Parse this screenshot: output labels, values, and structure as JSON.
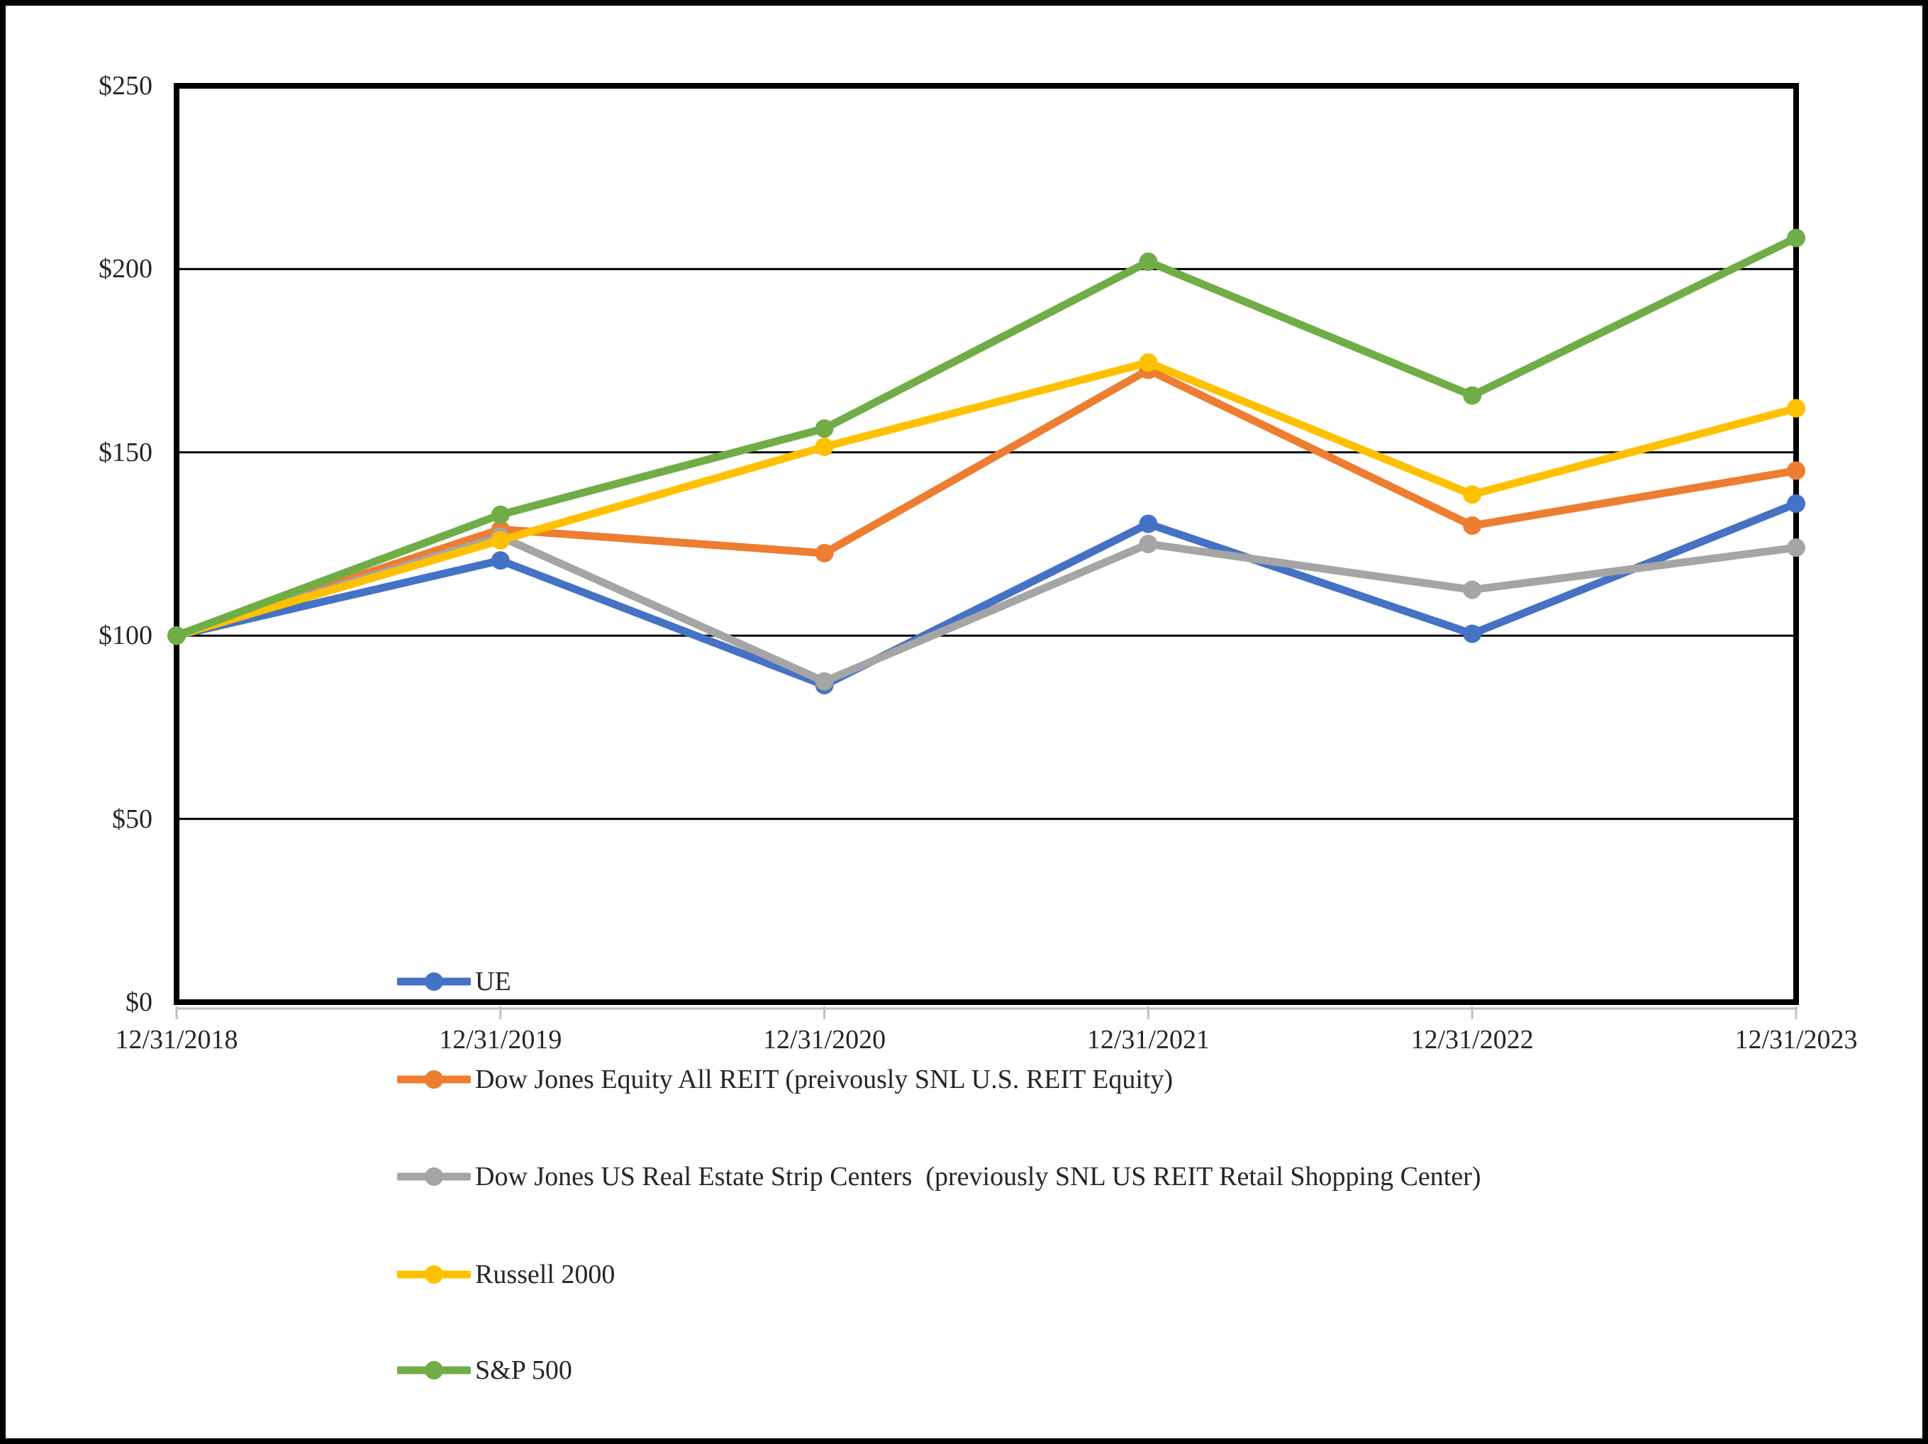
{
  "chart_data": {
    "type": "line",
    "title": "",
    "xlabel": "",
    "ylabel": "",
    "categories": [
      "12/31/2018",
      "12/31/2019",
      "12/31/2020",
      "12/31/2021",
      "12/31/2022",
      "12/31/2023"
    ],
    "series": [
      {
        "name": "UE",
        "color": "#4472C4",
        "values": [
          100,
          120.5,
          86.5,
          130.5,
          100.5,
          136
        ]
      },
      {
        "name": "Dow Jones Equity All REIT (preivously SNL U.S. REIT Equity)",
        "color": "#ED7D31",
        "values": [
          100,
          129,
          122.5,
          172.5,
          130,
          145
        ]
      },
      {
        "name": "Dow Jones US Real Estate Strip Centers  (previously SNL US REIT Retail Shopping Center)",
        "color": "#A5A5A5",
        "values": [
          100,
          127,
          87.5,
          125,
          112.5,
          124
        ]
      },
      {
        "name": "Russell 2000",
        "color": "#FFC000",
        "values": [
          100,
          126,
          151.5,
          174.5,
          138.5,
          162
        ]
      },
      {
        "name": "S&P 500",
        "color": "#70AD47",
        "values": [
          100,
          133,
          156.5,
          202,
          165.5,
          208.5
        ]
      }
    ],
    "y_tick_labels": [
      "$250",
      "$200",
      "$150",
      "$100",
      "$50",
      "$0"
    ],
    "y_tick_values": [
      250,
      200,
      150,
      100,
      50,
      0
    ],
    "ylim": [
      0,
      250
    ],
    "grid": "horizontal",
    "legend_position": "bottom-left-stacked",
    "marker": "circle",
    "axis_color": "#000000",
    "tick_color": "#bfbfbf"
  }
}
